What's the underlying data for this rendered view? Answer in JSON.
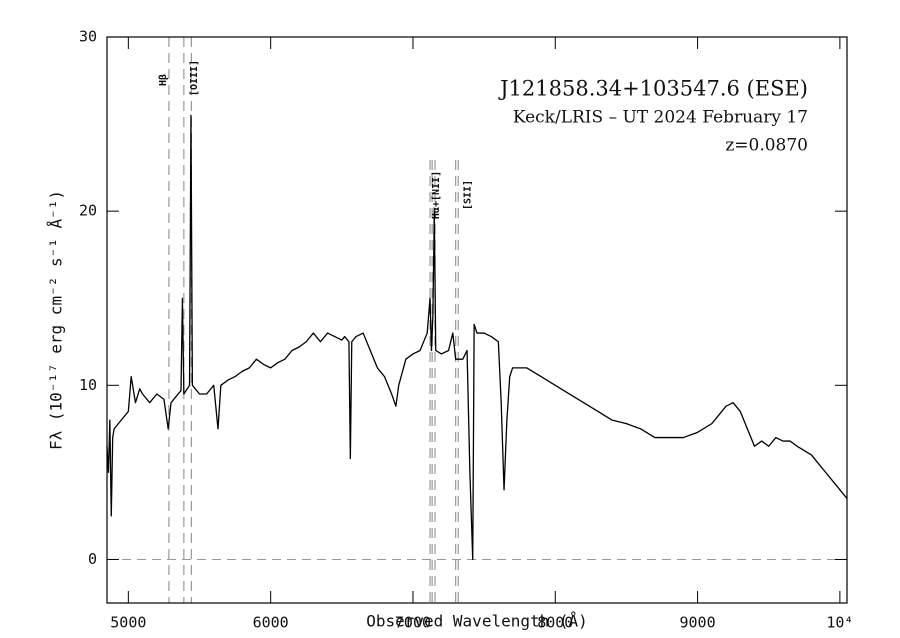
{
  "chart_data": {
    "type": "line",
    "annotations": [
      "J121858.34+103547.6 (ESE)",
      "Keck/LRIS – UT 2024 February 17",
      "z=0.0870"
    ],
    "xlabel": "Observed Wavelength (Å)",
    "ylabel": "Fλ (10⁻¹⁷ erg cm⁻² s⁻¹ Å⁻¹)",
    "x": [
      4850,
      4860,
      4870,
      4880,
      4890,
      4900,
      4950,
      5000,
      5020,
      5050,
      5080,
      5100,
      5150,
      5200,
      5250,
      5280,
      5300,
      5350,
      5370,
      5380,
      5390,
      5430,
      5440,
      5450,
      5500,
      5550,
      5600,
      5630,
      5650,
      5700,
      5750,
      5800,
      5850,
      5900,
      5950,
      6000,
      6050,
      6100,
      6150,
      6200,
      6250,
      6300,
      6350,
      6400,
      6450,
      6500,
      6520,
      6550,
      6560,
      6570,
      6600,
      6650,
      6700,
      6750,
      6800,
      6850,
      6880,
      6900,
      6950,
      7000,
      7050,
      7100,
      7120,
      7130,
      7140,
      7150,
      7160,
      7200,
      7250,
      7280,
      7300,
      7350,
      7380,
      7400,
      7420,
      7430,
      7450,
      7500,
      7550,
      7600,
      7620,
      7640,
      7660,
      7680,
      7700,
      7800,
      7900,
      8000,
      8100,
      8200,
      8300,
      8400,
      8500,
      8600,
      8700,
      8800,
      8900,
      9000,
      9100,
      9150,
      9200,
      9250,
      9300,
      9350,
      9400,
      9450,
      9500,
      9550,
      9600,
      9650,
      9700,
      9800,
      9850,
      9900,
      9950,
      10000,
      10050
    ],
    "values": [
      6.5,
      5,
      8,
      2.5,
      7,
      7.5,
      8,
      8.5,
      10.5,
      9,
      9.8,
      9.5,
      9,
      9.5,
      9.2,
      7.5,
      9,
      9.5,
      9.7,
      15,
      9.5,
      10,
      25.5,
      10,
      9.5,
      9.5,
      10,
      7.5,
      10,
      10.3,
      10.5,
      10.8,
      11,
      11.5,
      11.2,
      11,
      11.3,
      11.5,
      12,
      12.2,
      12.5,
      13,
      12.5,
      13,
      12.8,
      12.6,
      12.8,
      12.5,
      5.8,
      12.5,
      12.8,
      13,
      12,
      11,
      10.5,
      9.5,
      8.8,
      10,
      11.5,
      11.8,
      12,
      13,
      15,
      12,
      14,
      20,
      12,
      11.8,
      12,
      13,
      11.5,
      11.5,
      12,
      5,
      0,
      13.5,
      13,
      13,
      12.8,
      12.5,
      9,
      4,
      8,
      10.5,
      11,
      11,
      10.5,
      10,
      9.5,
      9,
      8.5,
      8,
      7.8,
      7.5,
      7,
      7,
      7,
      7.3,
      7.8,
      8.3,
      8.8,
      9,
      8.5,
      7.5,
      6.5,
      6.8,
      6.5,
      7,
      6.8,
      6.8,
      6.5,
      6,
      5.5,
      5,
      4.5,
      4,
      3.5
    ],
    "color": "#000000",
    "xlim": [
      4850,
      10050
    ],
    "xticks": [
      5000,
      6000,
      7000,
      8000,
      9000,
      {
        "value": 10000,
        "label": "10⁴"
      }
    ],
    "ylim": [
      -2.5,
      30
    ],
    "yticks": [
      0,
      10,
      20,
      30
    ],
    "hlines": [
      0
    ],
    "line_markers": [
      {
        "label": "Hβ",
        "x": [
          5285
        ]
      },
      {
        "label": "[OIII]",
        "x": [
          5390,
          5443
        ]
      },
      {
        "label": "Hα+[NII]",
        "x": [
          7120,
          7135,
          7155
        ]
      },
      {
        "label": "[SII]",
        "x": [
          7300,
          7318
        ]
      }
    ],
    "grid": false
  }
}
